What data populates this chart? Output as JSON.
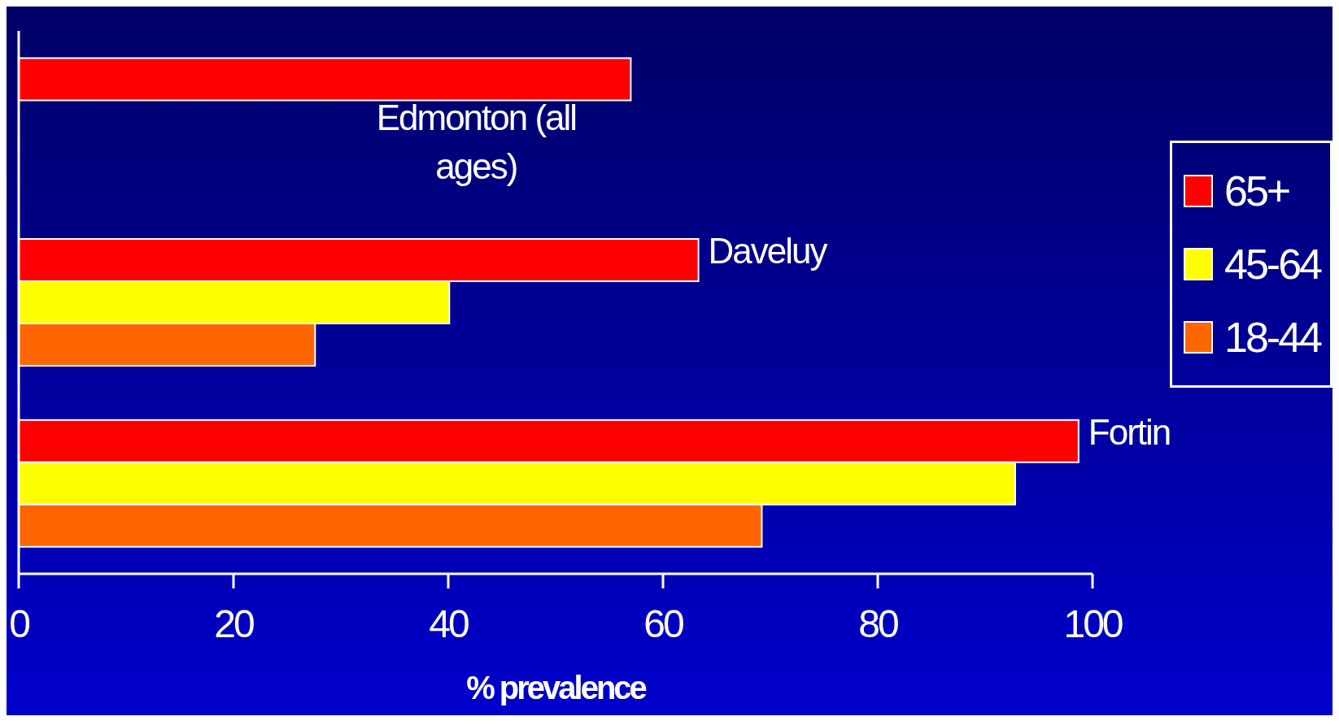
{
  "chart_data": {
    "type": "bar",
    "orientation": "horizontal",
    "categories": [
      "Edmonton (all ages)",
      "Daveluy",
      "Fortin"
    ],
    "series": [
      {
        "name": "65+",
        "color": "#ff0000",
        "values": [
          57,
          63.3,
          98.7
        ]
      },
      {
        "name": "45-64",
        "color": "#ffff00",
        "values": [
          null,
          40.1,
          92.8
        ]
      },
      {
        "name": "18-44",
        "color": "#ff6600",
        "values": [
          null,
          27.6,
          69.2
        ]
      }
    ],
    "xlabel": "% prevalence",
    "xlim": [
      0,
      100
    ],
    "xticks": [
      0,
      20,
      40,
      60,
      80,
      100
    ],
    "grid": false,
    "legend": "right"
  }
}
